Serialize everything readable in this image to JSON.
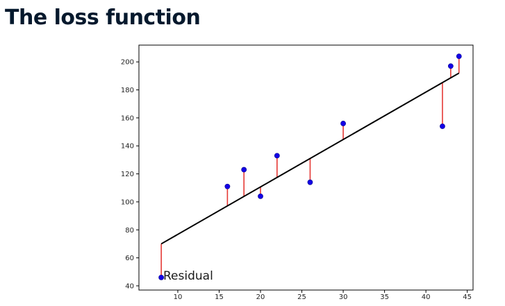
{
  "page": {
    "title": "The loss function"
  },
  "chart_data": {
    "type": "scatter",
    "x": [
      8,
      16,
      18,
      20,
      22,
      26,
      30,
      42,
      43,
      44
    ],
    "y": [
      46,
      111,
      123,
      104,
      133,
      114,
      156,
      154,
      197,
      204
    ],
    "fit_line": {
      "x": [
        8,
        44
      ],
      "y": [
        70,
        192
      ]
    },
    "xlim": [
      5.3,
      45.7
    ],
    "ylim": [
      37,
      212
    ],
    "xticks": [
      10,
      15,
      20,
      25,
      30,
      35,
      40,
      45
    ],
    "yticks": [
      40,
      60,
      80,
      100,
      120,
      140,
      160,
      180,
      200
    ],
    "annotation": "Residual",
    "grid": false,
    "colors": {
      "points": "#1400e6",
      "point_edge": "#0a0a8a",
      "fit_line": "#000000",
      "residuals": "#e53935"
    }
  }
}
